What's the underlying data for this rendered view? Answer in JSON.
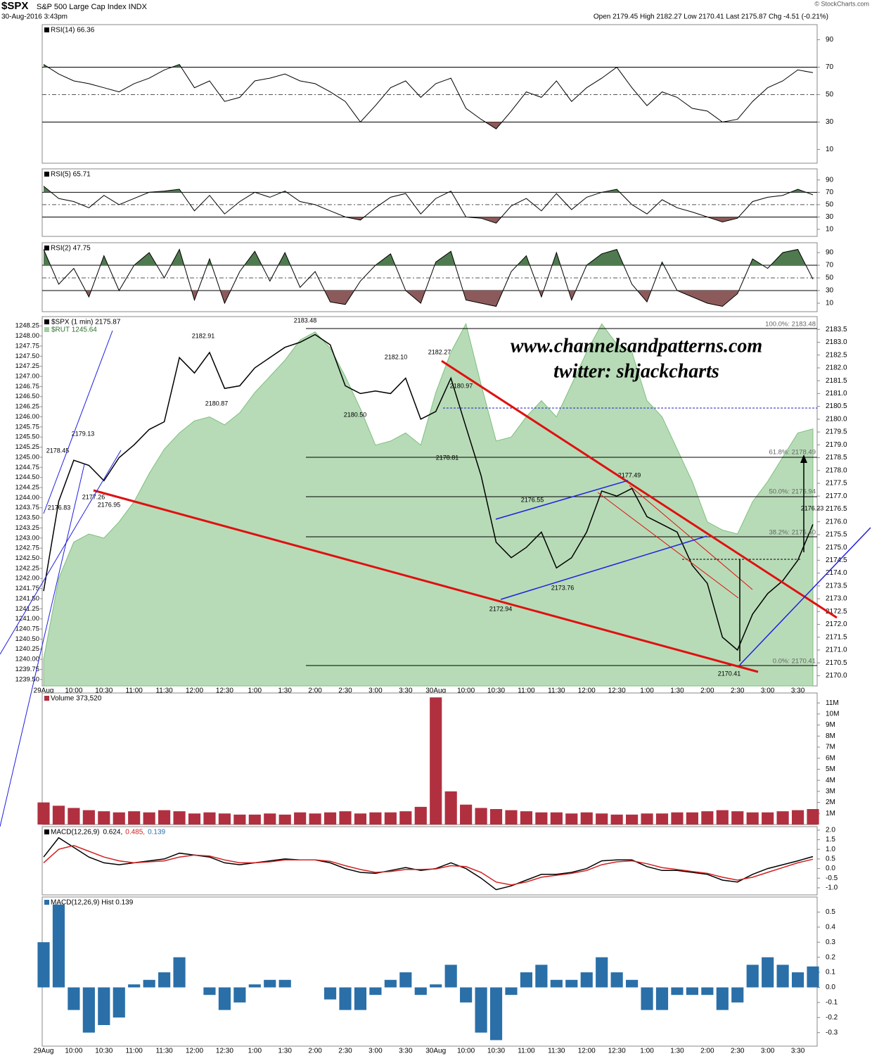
{
  "header": {
    "symbol": "$SPX",
    "name": "S&P 500 Large Cap Index INDX",
    "datetime": "30-Aug-2016 3:43pm",
    "quote": "Open 2179.45  High 2182.27  Low 2170.41  Last 2175.87  Chg -4.51 (-0.21%)",
    "watermark": "© StockCharts.com"
  },
  "chart_data": [
    {
      "type": "line",
      "title": "RSI(14) 66.36",
      "ylim": [
        0,
        101
      ],
      "yticks": [
        10,
        30,
        50,
        70,
        90
      ],
      "bands": [
        30,
        70
      ],
      "midline": 50,
      "color": "#000000",
      "fill_colors": [
        "#8c5a5a",
        "#4f7a4f"
      ],
      "values": [
        72,
        65,
        60,
        58,
        55,
        52,
        58,
        62,
        68,
        72,
        55,
        60,
        45,
        48,
        60,
        62,
        65,
        60,
        58,
        52,
        45,
        30,
        42,
        55,
        60,
        48,
        58,
        62,
        40,
        32,
        25,
        38,
        52,
        48,
        60,
        45,
        55,
        62,
        70,
        55,
        42,
        52,
        48,
        40,
        38,
        30,
        32,
        45,
        55,
        60,
        68,
        66
      ]
    },
    {
      "type": "line",
      "title": "RSI(5) 65.71",
      "ylim": [
        -1.4,
        108
      ],
      "yticks": [
        10,
        30,
        50,
        70,
        90
      ],
      "bands": [
        30,
        70
      ],
      "midline": 50,
      "color": "#000000",
      "fill_colors": [
        "#8c5a5a",
        "#4f7a4f"
      ],
      "values": [
        80,
        60,
        55,
        45,
        65,
        50,
        60,
        70,
        72,
        75,
        40,
        65,
        35,
        55,
        70,
        62,
        72,
        55,
        50,
        40,
        30,
        25,
        45,
        62,
        68,
        35,
        60,
        72,
        30,
        28,
        20,
        48,
        60,
        40,
        68,
        42,
        62,
        70,
        75,
        50,
        35,
        58,
        45,
        38,
        30,
        22,
        28,
        55,
        62,
        65,
        75,
        66
      ]
    },
    {
      "type": "line",
      "title": "RSI(2) 47.75",
      "ylim": [
        -3.3,
        105.6
      ],
      "yticks": [
        10,
        30,
        50,
        70,
        90
      ],
      "bands": [
        30,
        70
      ],
      "midline": 50,
      "color": "#000000",
      "fill_colors": [
        "#8c5a5a",
        "#4f7a4f"
      ],
      "values": [
        95,
        40,
        65,
        20,
        85,
        30,
        70,
        90,
        50,
        95,
        15,
        80,
        10,
        60,
        92,
        45,
        90,
        35,
        60,
        12,
        8,
        45,
        70,
        88,
        30,
        10,
        75,
        92,
        15,
        10,
        5,
        60,
        85,
        20,
        90,
        15,
        70,
        88,
        95,
        40,
        12,
        75,
        30,
        20,
        10,
        5,
        25,
        80,
        65,
        90,
        95,
        48
      ]
    },
    {
      "type": "line",
      "categories": [
        "29Aug",
        null,
        "10:00",
        null,
        "10:30",
        null,
        "11:00",
        null,
        "11:30",
        null,
        "12:00",
        null,
        "12:30",
        null,
        "1:00",
        null,
        "1:30",
        null,
        "2:00",
        null,
        "2:30",
        null,
        "3:00",
        null,
        "3:30",
        null,
        "30Aug",
        null,
        "10:00",
        null,
        "10:30",
        null,
        "11:00",
        null,
        "11:30",
        null,
        "12:00",
        null,
        "12:30",
        null,
        "1:00",
        null,
        "1:30",
        null,
        "2:00",
        null,
        "2:30",
        null,
        "3:00",
        null,
        "3:30",
        null
      ],
      "ylim": [
        2169.6,
        2184.0
      ],
      "yticks": [
        {
          "value": 2170,
          "label": "2170.0"
        },
        2170.5,
        {
          "value": 2171,
          "label": "2171.0"
        },
        2171.5,
        {
          "value": 2172,
          "label": "2172.0"
        },
        2172.5,
        {
          "value": 2173,
          "label": "2173.0"
        },
        2173.5,
        {
          "value": 2174,
          "label": "2174.0"
        },
        2174.5,
        {
          "value": 2175,
          "label": "2175.0"
        },
        2175.5,
        {
          "value": 2176,
          "label": "2176.0"
        },
        2176.5,
        {
          "value": 2177,
          "label": "2177.0"
        },
        2177.5,
        {
          "value": 2178,
          "label": "2178.0"
        },
        2178.5,
        {
          "value": 2179,
          "label": "2179.0"
        },
        2179.5,
        {
          "value": 2180,
          "label": "2180.0"
        },
        2180.5,
        {
          "value": 2181,
          "label": "2181.0"
        },
        2181.5,
        {
          "value": 2182,
          "label": "2182.0"
        },
        2182.5,
        {
          "value": 2183,
          "label": "2183.0"
        },
        2183.5
      ],
      "y2lim": [
        1239.34,
        1248.48
      ],
      "y2ticks": [
        {
          "value": 1239.5,
          "label": "1239.50"
        },
        1239.75,
        {
          "value": 1240,
          "label": "1240.00"
        },
        1240.25,
        {
          "value": 1240.5,
          "label": "1240.50"
        },
        1240.75,
        {
          "value": 1241,
          "label": "1241.00"
        },
        1241.25,
        {
          "value": 1241.5,
          "label": "1241.50"
        },
        1241.75,
        {
          "value": 1242,
          "label": "1242.00"
        },
        1242.25,
        {
          "value": 1242.5,
          "label": "1242.50"
        },
        1242.75,
        {
          "value": 1243,
          "label": "1243.00"
        },
        1243.25,
        {
          "value": 1243.5,
          "label": "1243.50"
        },
        1243.75,
        {
          "value": 1244,
          "label": "1244.00"
        },
        1244.25,
        {
          "value": 1244.5,
          "label": "1244.50"
        },
        1244.75,
        {
          "value": 1245,
          "label": "1245.00"
        },
        1245.25,
        {
          "value": 1245.5,
          "label": "1245.50"
        },
        1245.75,
        {
          "value": 1246,
          "label": "1246.00"
        },
        1246.25,
        {
          "value": 1246.5,
          "label": "1246.50"
        },
        1246.75,
        {
          "value": 1247,
          "label": "1247.00"
        },
        1247.25,
        {
          "value": 1247.5,
          "label": "1247.50"
        },
        1247.75,
        {
          "value": 1248,
          "label": "1248.00"
        },
        1248.25
      ],
      "series": [
        {
          "name": "$RUT 1245.64",
          "color": "#9fcf9f",
          "axis": "y2",
          "area": true,
          "values": [
            1240.0,
            1242.0,
            1242.9,
            1243.1,
            1243.0,
            1243.4,
            1243.9,
            1244.6,
            1245.2,
            1245.6,
            1245.9,
            1246.0,
            1245.8,
            1246.1,
            1246.6,
            1247.0,
            1247.4,
            1247.9,
            1248.1,
            1247.7,
            1247.0,
            1246.2,
            1245.3,
            1245.4,
            1245.6,
            1245.3,
            1246.6,
            1247.6,
            1248.3,
            1246.8,
            1245.4,
            1245.5,
            1246.0,
            1246.4,
            1246.0,
            1246.8,
            1247.6,
            1248.3,
            1247.8,
            1247.6,
            1246.4,
            1246.0,
            1245.2,
            1244.4,
            1243.4,
            1243.2,
            1243.1,
            1243.9,
            1244.4,
            1245.0,
            1245.6,
            1245.7
          ]
        },
        {
          "name": "$SPX (1 min) 2175.87",
          "color": "#000000",
          "values": [
            2173.3,
            2176.8,
            2178.4,
            2178.2,
            2177.6,
            2178.5,
            2179.0,
            2179.6,
            2179.9,
            2182.4,
            2181.8,
            2182.6,
            2181.2,
            2181.3,
            2182.0,
            2182.4,
            2182.8,
            2183.0,
            2183.3,
            2182.9,
            2181.3,
            2181.0,
            2181.1,
            2181.0,
            2181.6,
            2180.0,
            2180.3,
            2181.6,
            2179.7,
            2177.8,
            2175.2,
            2174.6,
            2175.0,
            2175.6,
            2174.2,
            2174.6,
            2175.6,
            2177.2,
            2177.0,
            2177.3,
            2176.2,
            2175.9,
            2175.6,
            2174.3,
            2173.6,
            2171.5,
            2171.0,
            2172.4,
            2173.2,
            2173.7,
            2174.5,
            2175.9
          ]
        }
      ],
      "annotations": [
        "2183.48",
        "2182.91",
        "2182.10",
        "2182.27",
        "2180.97",
        "2180.87",
        "2180.50",
        "2179.13",
        "2178.45",
        "2178.81",
        "2177.26",
        "2176.83",
        "2176.95",
        "2176.55",
        "2177.49",
        "2173.76",
        "2172.94",
        "2170.41",
        "2176.23"
      ],
      "fib_labels": [
        "100.0%: 2183.48",
        "61.8%: 2178.49",
        "50.0%: 2176.94",
        "38.2%: 2175.40",
        "0.0%: 2170.41"
      ],
      "watermark": [
        "www.channelsandpatterns.com",
        "twitter: shjackcharts"
      ]
    },
    {
      "type": "bar",
      "title": "Volume 373,520",
      "color": "#b03040",
      "ylim": [
        0,
        11900000
      ],
      "yticks": [
        {
          "value": 1000000,
          "label": "1M"
        },
        {
          "value": 2000000,
          "label": "2M"
        },
        {
          "value": 3000000,
          "label": "3M"
        },
        {
          "value": 4000000,
          "label": "4M"
        },
        {
          "value": 5000000,
          "label": "5M"
        },
        {
          "value": 6000000,
          "label": "6M"
        },
        {
          "value": 7000000,
          "label": "7M"
        },
        {
          "value": 8000000,
          "label": "8M"
        },
        {
          "value": 9000000,
          "label": "9M"
        },
        {
          "value": 10000000,
          "label": "10M"
        },
        {
          "value": 11000000,
          "label": "11M"
        }
      ],
      "values": [
        2000000,
        1700000,
        1500000,
        1300000,
        1200000,
        1100000,
        1200000,
        1100000,
        1300000,
        1200000,
        1000000,
        1100000,
        1000000,
        900000,
        900000,
        1000000,
        900000,
        1100000,
        1000000,
        1100000,
        1200000,
        1000000,
        1100000,
        1100000,
        1200000,
        1600000,
        11500000,
        3000000,
        1800000,
        1500000,
        1400000,
        1300000,
        1200000,
        1100000,
        1100000,
        1000000,
        1100000,
        1000000,
        900000,
        900000,
        1000000,
        1000000,
        1100000,
        1100000,
        1200000,
        1300000,
        1200000,
        1100000,
        1100000,
        1200000,
        1300000,
        1400000
      ]
    },
    {
      "type": "line",
      "title": "MACD(12,26,9)",
      "hist_value_label": "0.139",
      "hist_color": "#2a6fa8",
      "ylim": [
        -1.37,
        2.18
      ],
      "yticks": [
        {
          "value": 2,
          "label": "2.0"
        },
        1.5,
        {
          "value": 1,
          "label": "1.0"
        },
        0.5,
        {
          "value": 0,
          "label": "0.0"
        },
        -0.5,
        {
          "value": -1,
          "label": "-1.0"
        }
      ],
      "series": [
        {
          "name": "0.624,",
          "color": "#000000",
          "values": [
            0.6,
            1.6,
            1.1,
            0.6,
            0.3,
            0.2,
            0.3,
            0.4,
            0.5,
            0.8,
            0.7,
            0.6,
            0.3,
            0.2,
            0.3,
            0.4,
            0.5,
            0.45,
            0.45,
            0.3,
            0.0,
            -0.2,
            -0.25,
            -0.1,
            0.05,
            -0.1,
            0.0,
            0.3,
            0.0,
            -0.5,
            -1.1,
            -0.9,
            -0.6,
            -0.3,
            -0.3,
            -0.2,
            0.0,
            0.4,
            0.45,
            0.45,
            0.1,
            -0.1,
            -0.1,
            -0.2,
            -0.3,
            -0.6,
            -0.7,
            -0.3,
            0.0,
            0.2,
            0.4,
            0.624
          ]
        },
        {
          "name": "0.485,",
          "color": "#d02020",
          "values": [
            0.3,
            1.0,
            1.2,
            0.9,
            0.6,
            0.4,
            0.3,
            0.35,
            0.4,
            0.6,
            0.7,
            0.65,
            0.45,
            0.3,
            0.3,
            0.35,
            0.45,
            0.45,
            0.45,
            0.38,
            0.15,
            -0.05,
            -0.2,
            -0.15,
            -0.05,
            -0.05,
            -0.02,
            0.15,
            0.1,
            -0.2,
            -0.7,
            -0.85,
            -0.7,
            -0.45,
            -0.35,
            -0.25,
            -0.1,
            0.2,
            0.35,
            0.4,
            0.25,
            0.05,
            -0.05,
            -0.15,
            -0.25,
            -0.45,
            -0.6,
            -0.45,
            -0.2,
            0.05,
            0.3,
            0.485
          ]
        }
      ]
    },
    {
      "type": "bar",
      "title": "MACD(12,26,9) Hist 0.139",
      "color": "#2a6fa8",
      "ylim": [
        -0.39,
        0.6
      ],
      "categories": [
        "29Aug",
        null,
        "10:00",
        null,
        "10:30",
        null,
        "11:00",
        null,
        "11:30",
        null,
        "12:00",
        null,
        "12:30",
        null,
        "1:00",
        null,
        "1:30",
        null,
        "2:00",
        null,
        "2:30",
        null,
        "3:00",
        null,
        "3:30",
        null,
        "30Aug",
        null,
        "10:00",
        null,
        "10:30",
        null,
        "11:00",
        null,
        "11:30",
        null,
        "12:00",
        null,
        "12:30",
        null,
        "1:00",
        null,
        "1:30",
        null,
        "2:00",
        null,
        "2:30",
        null,
        "3:00",
        null,
        "3:30",
        null
      ],
      "yticks": [
        0.5,
        0.4,
        0.3,
        0.2,
        0.1,
        {
          "value": 0,
          "label": "0.0"
        },
        -0.1,
        -0.2,
        -0.3
      ],
      "values": [
        0.3,
        0.55,
        -0.15,
        -0.3,
        -0.25,
        -0.2,
        0.02,
        0.05,
        0.1,
        0.2,
        0.0,
        -0.05,
        -0.15,
        -0.1,
        0.02,
        0.05,
        0.05,
        0.0,
        0.0,
        -0.08,
        -0.15,
        -0.15,
        -0.05,
        0.05,
        0.1,
        -0.05,
        0.02,
        0.15,
        -0.1,
        -0.3,
        -0.35,
        -0.05,
        0.1,
        0.15,
        0.05,
        0.05,
        0.1,
        0.2,
        0.1,
        0.05,
        -0.15,
        -0.15,
        -0.05,
        -0.05,
        -0.05,
        -0.15,
        -0.1,
        0.15,
        0.2,
        0.15,
        0.1,
        0.139
      ]
    }
  ]
}
